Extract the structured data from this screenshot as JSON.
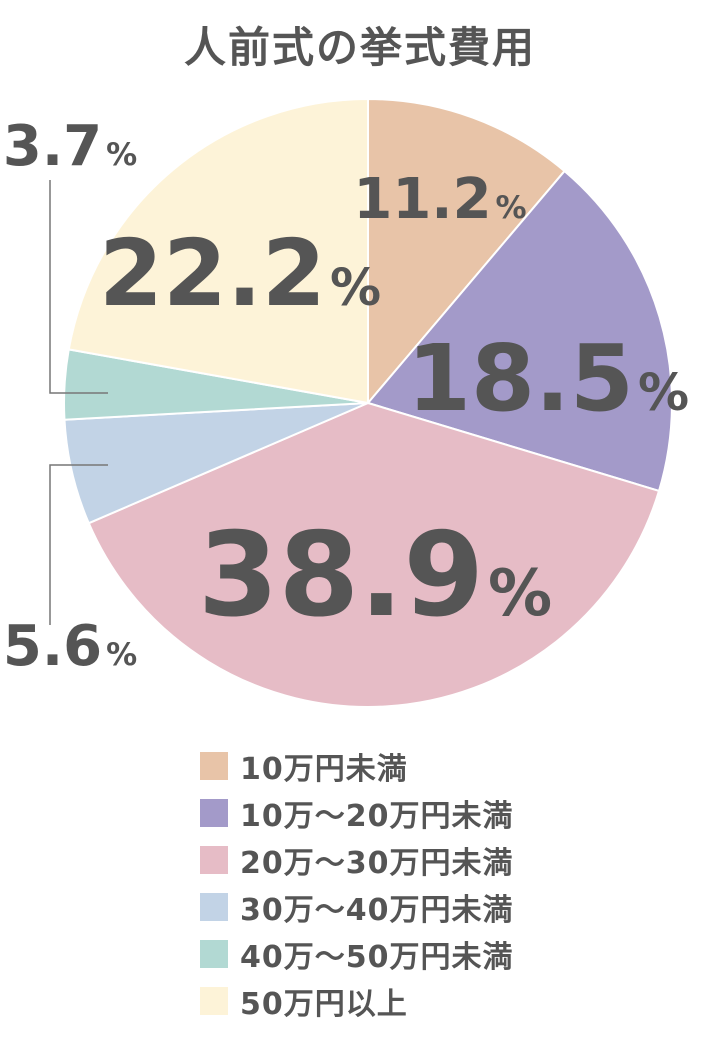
{
  "chart_data": {
    "type": "pie",
    "title": "人前式の挙式費用",
    "slices": [
      {
        "name": "10万円未満",
        "value": 11.2,
        "label": "11.2",
        "color": "#e8c4a8"
      },
      {
        "name": "10万～20万円未満",
        "value": 18.5,
        "label": "18.5",
        "color": "#a39ac9"
      },
      {
        "name": "20万～30万円未満",
        "value": 38.9,
        "label": "38.9",
        "color": "#e6bcc6"
      },
      {
        "name": "30万～40万円未満",
        "value": 5.6,
        "label": "5.6",
        "color": "#c2d3e6"
      },
      {
        "name": "40万～50万円未満",
        "value": 3.7,
        "label": "3.7",
        "color": "#b2d9d3"
      },
      {
        "name": "50万円以上",
        "value": 22.2,
        "label": "22.2",
        "color": "#fdf3d8"
      }
    ],
    "unit": "%",
    "legend_position": "bottom"
  }
}
